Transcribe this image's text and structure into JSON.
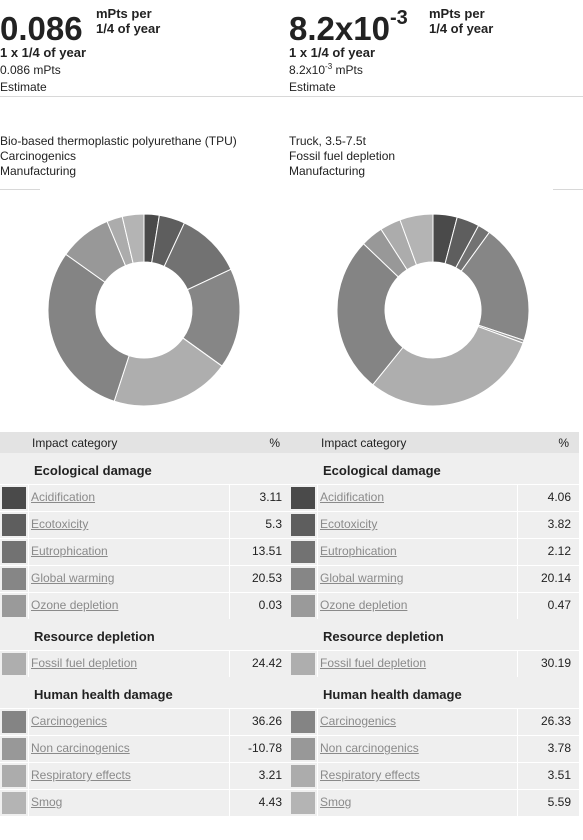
{
  "left": {
    "value_main": "0.086",
    "value_exp": "",
    "unit_line1": "mPts per",
    "unit_line2": "1/4 of year",
    "amount": "1 x 1/4 of year",
    "value_text": "0.086 mPts",
    "value_text_exp": "",
    "value_text_unit": "",
    "status": "Estimate",
    "material": "Bio-based thermoplastic polyurethane (TPU)",
    "category": "Carcinogenics",
    "phase": "Manufacturing"
  },
  "right": {
    "value_main": "8.2x10",
    "value_exp": "-3",
    "unit_line1": "mPts per",
    "unit_line2": "1/4 of year",
    "amount": "1 x 1/4 of year",
    "value_text": "8.2x10",
    "value_text_exp": "-3",
    "value_text_unit": " mPts",
    "status": "Estimate",
    "material": "Truck, 3.5-7.5t",
    "category": "Fossil fuel depletion",
    "phase": "Manufacturing"
  },
  "table_header": {
    "category": "Impact category",
    "percent": "%"
  },
  "groups": [
    "Ecological damage",
    "Resource depletion",
    "Human health damage"
  ],
  "categories": [
    "Acidification",
    "Ecotoxicity",
    "Eutrophication",
    "Global warming",
    "Ozone depletion",
    "Fossil fuel depletion",
    "Carcinogenics",
    "Non carcinogenics",
    "Respiratory effects",
    "Smog"
  ],
  "colors": [
    "#4a4a4a",
    "#5e5e5e",
    "#727272",
    "#868686",
    "#9a9a9a",
    "#aeaeae",
    "#848484",
    "#989898",
    "#acacac",
    "#b4b4b4"
  ],
  "left_values": [
    "3.11",
    "5.3",
    "13.51",
    "20.53",
    "0.03",
    "24.42",
    "36.26",
    "-10.78",
    "3.21",
    "4.43"
  ],
  "right_values": [
    "4.06",
    "3.82",
    "2.12",
    "20.14",
    "0.47",
    "30.19",
    "26.33",
    "3.78",
    "3.51",
    "5.59"
  ],
  "chart_data": [
    {
      "type": "pie",
      "categories": [
        "Acidification",
        "Ecotoxicity",
        "Eutrophication",
        "Global warming",
        "Ozone depletion",
        "Fossil fuel depletion",
        "Carcinogenics",
        "Non carcinogenics",
        "Respiratory effects",
        "Smog"
      ],
      "values": [
        3.11,
        5.3,
        13.51,
        20.53,
        0.03,
        24.42,
        36.26,
        -10.78,
        3.21,
        4.43
      ],
      "colors": [
        "#4a4a4a",
        "#5e5e5e",
        "#727272",
        "#868686",
        "#9a9a9a",
        "#aeaeae",
        "#848484",
        "#989898",
        "#acacac",
        "#b4b4b4"
      ],
      "hole": true
    },
    {
      "type": "pie",
      "categories": [
        "Acidification",
        "Ecotoxicity",
        "Eutrophication",
        "Global warming",
        "Ozone depletion",
        "Fossil fuel depletion",
        "Carcinogenics",
        "Non carcinogenics",
        "Respiratory effects",
        "Smog"
      ],
      "values": [
        4.06,
        3.82,
        2.12,
        20.14,
        0.47,
        30.19,
        26.33,
        3.78,
        3.51,
        5.59
      ],
      "colors": [
        "#4a4a4a",
        "#5e5e5e",
        "#727272",
        "#868686",
        "#9a9a9a",
        "#aeaeae",
        "#848484",
        "#989898",
        "#acacac",
        "#b4b4b4"
      ],
      "hole": true
    }
  ]
}
